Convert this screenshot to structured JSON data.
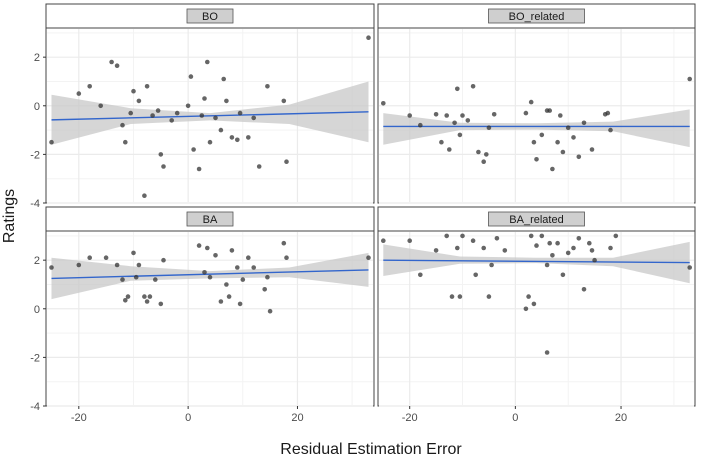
{
  "chart_data": {
    "type": "scatter",
    "xlabel": "Residual Estimation Error",
    "ylabel": "Ratings",
    "xlim": [
      -26,
      34
    ],
    "ylim": [
      -4,
      3.2
    ],
    "x_ticks": [
      -20,
      0,
      20
    ],
    "y_ticks": [
      -4,
      -2,
      0,
      2
    ],
    "grid": true,
    "smooth": "linear fit with confidence band",
    "panels": [
      {
        "name": "BO",
        "fit": {
          "y_start": -0.58,
          "y_end": -0.25
        },
        "band": {
          "upper": [
            0.45,
            -0.1,
            -0.3,
            0.05,
            1.0
          ],
          "lower": [
            -1.6,
            -0.75,
            -0.6,
            -0.75,
            -1.5
          ]
        },
        "points": [
          {
            "x": -25,
            "y": -1.5
          },
          {
            "x": -20,
            "y": 0.5
          },
          {
            "x": -18,
            "y": 0.8
          },
          {
            "x": -16,
            "y": 0.0
          },
          {
            "x": -14,
            "y": 1.8
          },
          {
            "x": -13,
            "y": 1.65
          },
          {
            "x": -12,
            "y": -0.8
          },
          {
            "x": -11.5,
            "y": -1.5
          },
          {
            "x": -10.5,
            "y": -0.3
          },
          {
            "x": -10,
            "y": 0.6
          },
          {
            "x": -9,
            "y": 0.2
          },
          {
            "x": -8,
            "y": -3.7
          },
          {
            "x": -7.5,
            "y": 0.8
          },
          {
            "x": -6.5,
            "y": -0.4
          },
          {
            "x": -5.5,
            "y": -0.2
          },
          {
            "x": -5,
            "y": -2.0
          },
          {
            "x": -4.5,
            "y": -2.5
          },
          {
            "x": -3,
            "y": -0.6
          },
          {
            "x": -2,
            "y": -0.3
          },
          {
            "x": 0,
            "y": 0.0
          },
          {
            "x": 0.5,
            "y": 1.2
          },
          {
            "x": 1,
            "y": -1.8
          },
          {
            "x": 2,
            "y": -2.6
          },
          {
            "x": 2.5,
            "y": -0.4
          },
          {
            "x": 3,
            "y": 0.3
          },
          {
            "x": 3.5,
            "y": 1.8
          },
          {
            "x": 4,
            "y": -1.5
          },
          {
            "x": 5,
            "y": -0.5
          },
          {
            "x": 6,
            "y": -1.0
          },
          {
            "x": 6.5,
            "y": 1.1
          },
          {
            "x": 7,
            "y": 0.2
          },
          {
            "x": 8,
            "y": -1.3
          },
          {
            "x": 9,
            "y": -1.4
          },
          {
            "x": 9.5,
            "y": -0.3
          },
          {
            "x": 11,
            "y": -1.3
          },
          {
            "x": 12,
            "y": -0.5
          },
          {
            "x": 13,
            "y": -2.5
          },
          {
            "x": 14.5,
            "y": 0.8
          },
          {
            "x": 17.5,
            "y": 0.2
          },
          {
            "x": 18,
            "y": -2.3
          },
          {
            "x": 33,
            "y": 2.8
          }
        ]
      },
      {
        "name": "BO_related",
        "fit": {
          "y_start": -0.85,
          "y_end": -0.85
        },
        "band": {
          "upper": [
            -0.3,
            -0.7,
            -0.72,
            -0.65,
            -0.15
          ],
          "lower": [
            -1.6,
            -1.0,
            -0.98,
            -1.05,
            -1.7
          ]
        },
        "points": [
          {
            "x": -25,
            "y": 0.1
          },
          {
            "x": -20,
            "y": -0.4
          },
          {
            "x": -18,
            "y": -0.8
          },
          {
            "x": -15,
            "y": -0.35
          },
          {
            "x": -14,
            "y": -1.5
          },
          {
            "x": -13,
            "y": -0.4
          },
          {
            "x": -12.5,
            "y": -1.8
          },
          {
            "x": -11.5,
            "y": -0.7
          },
          {
            "x": -11,
            "y": 0.7
          },
          {
            "x": -10.5,
            "y": -1.2
          },
          {
            "x": -10,
            "y": -0.4
          },
          {
            "x": -9,
            "y": -0.6
          },
          {
            "x": -8,
            "y": 0.8
          },
          {
            "x": -7,
            "y": -1.9
          },
          {
            "x": -6,
            "y": -2.3
          },
          {
            "x": -5.5,
            "y": -2.0
          },
          {
            "x": -5,
            "y": -0.9
          },
          {
            "x": -4,
            "y": -0.35
          },
          {
            "x": 2,
            "y": -0.3
          },
          {
            "x": 3,
            "y": 0.15
          },
          {
            "x": 3.5,
            "y": -1.5
          },
          {
            "x": 4,
            "y": -2.2
          },
          {
            "x": 5,
            "y": -1.2
          },
          {
            "x": 6,
            "y": -0.2
          },
          {
            "x": 6.5,
            "y": -0.2
          },
          {
            "x": 7,
            "y": -2.6
          },
          {
            "x": 8,
            "y": -1.5
          },
          {
            "x": 8.5,
            "y": -0.4
          },
          {
            "x": 9,
            "y": -1.9
          },
          {
            "x": 10,
            "y": -0.9
          },
          {
            "x": 11,
            "y": -1.3
          },
          {
            "x": 12,
            "y": -2.1
          },
          {
            "x": 13,
            "y": -0.7
          },
          {
            "x": 14.5,
            "y": -1.8
          },
          {
            "x": 17,
            "y": -0.35
          },
          {
            "x": 17.5,
            "y": -0.3
          },
          {
            "x": 18,
            "y": -1.0
          },
          {
            "x": 33,
            "y": 1.1
          }
        ]
      },
      {
        "name": "BA",
        "fit": {
          "y_start": 1.25,
          "y_end": 1.6
        },
        "band": {
          "upper": [
            2.1,
            1.75,
            1.55,
            1.7,
            2.3
          ],
          "lower": [
            0.4,
            1.15,
            1.25,
            1.3,
            0.9
          ]
        },
        "points": [
          {
            "x": -25,
            "y": 1.7
          },
          {
            "x": -20,
            "y": 1.8
          },
          {
            "x": -18,
            "y": 2.1
          },
          {
            "x": -15,
            "y": 2.1
          },
          {
            "x": -13,
            "y": 1.8
          },
          {
            "x": -12,
            "y": 1.2
          },
          {
            "x": -11.5,
            "y": 0.35
          },
          {
            "x": -11,
            "y": 0.5
          },
          {
            "x": -10,
            "y": 2.3
          },
          {
            "x": -9.5,
            "y": 1.3
          },
          {
            "x": -9,
            "y": 1.8
          },
          {
            "x": -8,
            "y": 0.5
          },
          {
            "x": -7.5,
            "y": 0.3
          },
          {
            "x": -7,
            "y": 0.5
          },
          {
            "x": -6,
            "y": 1.2
          },
          {
            "x": -5,
            "y": 0.2
          },
          {
            "x": -4.5,
            "y": 2.0
          },
          {
            "x": 2,
            "y": 2.6
          },
          {
            "x": 3,
            "y": 1.5
          },
          {
            "x": 3.5,
            "y": 2.5
          },
          {
            "x": 4,
            "y": 1.3
          },
          {
            "x": 5,
            "y": 2.2
          },
          {
            "x": 6,
            "y": 0.3
          },
          {
            "x": 7,
            "y": 1.0
          },
          {
            "x": 7.5,
            "y": 0.5
          },
          {
            "x": 8,
            "y": 2.4
          },
          {
            "x": 9,
            "y": 1.7
          },
          {
            "x": 9.5,
            "y": 0.2
          },
          {
            "x": 10,
            "y": 1.2
          },
          {
            "x": 11,
            "y": 2.1
          },
          {
            "x": 12,
            "y": 1.7
          },
          {
            "x": 14,
            "y": 0.8
          },
          {
            "x": 14.5,
            "y": 1.3
          },
          {
            "x": 15,
            "y": -0.1
          },
          {
            "x": 17.5,
            "y": 2.7
          },
          {
            "x": 18,
            "y": 2.1
          },
          {
            "x": 33,
            "y": 2.1
          }
        ]
      },
      {
        "name": "BA_related",
        "fit": {
          "y_start": 2.0,
          "y_end": 1.9
        },
        "band": {
          "upper": [
            2.65,
            2.15,
            2.1,
            2.1,
            2.75
          ],
          "lower": [
            1.35,
            1.85,
            1.88,
            1.75,
            1.05
          ]
        },
        "points": [
          {
            "x": -25,
            "y": 2.8
          },
          {
            "x": -20,
            "y": 2.8
          },
          {
            "x": -18,
            "y": 1.4
          },
          {
            "x": -15,
            "y": 2.4
          },
          {
            "x": -13,
            "y": 3.0
          },
          {
            "x": -12,
            "y": 0.5
          },
          {
            "x": -11,
            "y": 2.5
          },
          {
            "x": -10.5,
            "y": 0.5
          },
          {
            "x": -10,
            "y": 3.0
          },
          {
            "x": -8,
            "y": 2.8
          },
          {
            "x": -7.5,
            "y": 1.4
          },
          {
            "x": -6,
            "y": 2.5
          },
          {
            "x": -5,
            "y": 0.5
          },
          {
            "x": -4.5,
            "y": 1.8
          },
          {
            "x": -3.5,
            "y": 2.9
          },
          {
            "x": -2,
            "y": 2.4
          },
          {
            "x": 2,
            "y": 0.0
          },
          {
            "x": 2.5,
            "y": 0.5
          },
          {
            "x": 3,
            "y": 3.0
          },
          {
            "x": 3.5,
            "y": 0.2
          },
          {
            "x": 4,
            "y": 2.6
          },
          {
            "x": 5,
            "y": 3.0
          },
          {
            "x": 6,
            "y": 1.8
          },
          {
            "x": 6.5,
            "y": 2.7
          },
          {
            "x": 7,
            "y": 2.2
          },
          {
            "x": 8,
            "y": 2.7
          },
          {
            "x": 9,
            "y": 1.4
          },
          {
            "x": 10,
            "y": 2.3
          },
          {
            "x": 11,
            "y": 2.5
          },
          {
            "x": 12,
            "y": 2.9
          },
          {
            "x": 13,
            "y": 0.8
          },
          {
            "x": 14,
            "y": 2.7
          },
          {
            "x": 14.5,
            "y": 2.4
          },
          {
            "x": 15,
            "y": 2.0
          },
          {
            "x": 18,
            "y": 2.5
          },
          {
            "x": 19,
            "y": 3.0
          },
          {
            "x": 33,
            "y": 1.7
          },
          {
            "x": 6,
            "y": -1.8
          }
        ]
      }
    ]
  },
  "colors": {
    "point": "#333333",
    "fit_line": "#3366cc",
    "band": "#c8c8c8",
    "strip_label_bg": "#cfcfcf",
    "panel_border": "#444444",
    "grid": "#ebebeb"
  }
}
